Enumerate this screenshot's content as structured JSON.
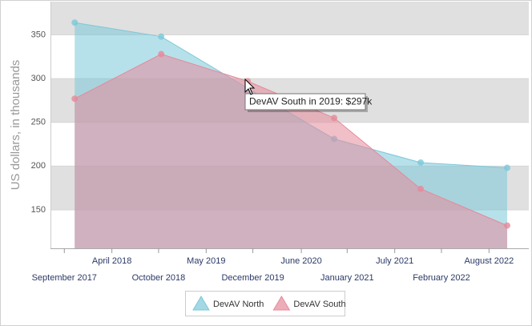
{
  "chart_data": {
    "type": "area",
    "y_axis_label": "US dollars, in thousands",
    "x": [
      2017,
      2018,
      2019,
      2020,
      2021,
      2022
    ],
    "series": [
      {
        "name": "DevAV North",
        "color": "#7cc8d8",
        "values": [
          364,
          348,
          289,
          231,
          204,
          198
        ]
      },
      {
        "name": "DevAV South",
        "color": "#e58a9a",
        "values": [
          277,
          328,
          297,
          255,
          174,
          132
        ]
      }
    ],
    "xlim": [
      2016.72,
      2022.25
    ],
    "xticks": [
      {
        "value": 2016.88,
        "label": "September 2017"
      },
      {
        "value": 2017.43,
        "label": "April 2018"
      },
      {
        "value": 2017.97,
        "label": "October 2018"
      },
      {
        "value": 2018.52,
        "label": "May 2019"
      },
      {
        "value": 2019.06,
        "label": "December 2019"
      },
      {
        "value": 2019.62,
        "label": "June 2020"
      },
      {
        "value": 2020.15,
        "label": "January 2021"
      },
      {
        "value": 2020.7,
        "label": "July 2021"
      },
      {
        "value": 2021.24,
        "label": "February 2022"
      },
      {
        "value": 2021.79,
        "label": "August 2022"
      }
    ],
    "ylim": [
      106,
      388
    ],
    "yticks": [
      150,
      200,
      250,
      300,
      350
    ],
    "interlaced": true,
    "legend": "bottom",
    "tooltip": "DevAV South in 2019: $297k"
  }
}
